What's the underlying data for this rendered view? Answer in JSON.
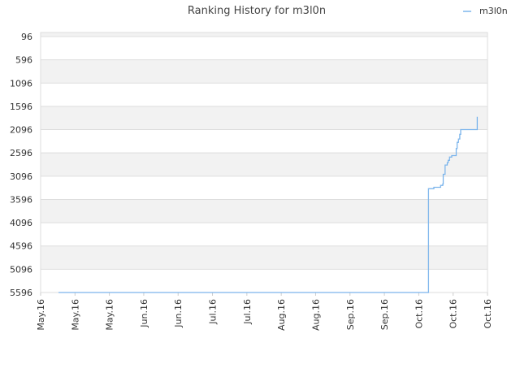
{
  "chart_data": {
    "type": "line",
    "title": "Ranking History for m3l0n",
    "legend": {
      "position": "top-right",
      "entries": [
        "m3l0n"
      ]
    },
    "ylabel": "",
    "xlabel": "",
    "y_reversed": true,
    "ylim": [
      96,
      5596
    ],
    "yticks": [
      96,
      596,
      1096,
      1596,
      2096,
      2596,
      3096,
      3596,
      4096,
      4596,
      5096,
      5596
    ],
    "xticks": [
      "May.16",
      "May.16",
      "May.16",
      "Jun.16",
      "Jun.16",
      "Jul.16",
      "Jul.16",
      "Aug.16",
      "Aug.16",
      "Sep.16",
      "Sep.16",
      "Oct.16",
      "Oct.16",
      "Oct.16"
    ],
    "grid": true,
    "colors": {
      "series": "#7cb5ec",
      "band": "#f2f2f2",
      "grid": "#dddddd"
    },
    "series": [
      {
        "name": "m3l0n",
        "x": [
          0.04,
          0.865,
          0.868,
          0.88,
          0.895,
          0.9,
          0.901,
          0.905,
          0.91,
          0.912,
          0.915,
          0.92,
          0.925,
          0.93,
          0.932,
          0.935,
          0.938,
          0.94,
          0.96,
          0.975,
          0.977
        ],
        "values": [
          5596,
          5596,
          3400,
          3370,
          3330,
          3300,
          3096,
          2900,
          2850,
          2800,
          2730,
          2700,
          2700,
          2550,
          2420,
          2350,
          2250,
          2150,
          2150,
          2150,
          1880
        ]
      }
    ]
  }
}
